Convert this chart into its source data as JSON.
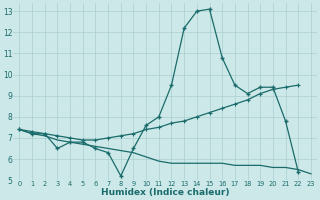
{
  "xlabel": "Humidex (Indice chaleur)",
  "bg_color": "#cde8e8",
  "line_color": "#1a6b6b",
  "grid_color": "#aacfcf",
  "xlim": [
    -0.5,
    23.5
  ],
  "ylim": [
    5,
    13.4
  ],
  "xticks": [
    0,
    1,
    2,
    3,
    4,
    5,
    6,
    7,
    8,
    9,
    10,
    11,
    12,
    13,
    14,
    15,
    16,
    17,
    18,
    19,
    20,
    21,
    22,
    23
  ],
  "yticks": [
    5,
    6,
    7,
    8,
    9,
    10,
    11,
    12,
    13
  ],
  "line1_x": [
    0,
    1,
    2,
    3,
    4,
    5,
    6,
    7,
    8,
    9,
    10,
    11,
    12,
    13,
    14,
    15,
    16,
    17,
    18,
    19,
    20,
    21,
    22
  ],
  "line1_y": [
    7.4,
    7.2,
    7.2,
    6.5,
    6.8,
    6.8,
    6.5,
    6.3,
    5.2,
    6.5,
    7.6,
    8.0,
    9.5,
    12.2,
    13.0,
    13.1,
    10.8,
    9.5,
    9.1,
    9.4,
    9.4,
    7.8,
    5.4
  ],
  "line2_x": [
    0,
    1,
    2,
    3,
    4,
    5,
    6,
    7,
    8,
    9,
    10,
    11,
    12,
    13,
    14,
    15,
    16,
    17,
    18,
    19,
    20,
    21,
    22
  ],
  "line2_y": [
    7.4,
    7.3,
    7.2,
    7.1,
    7.0,
    6.9,
    6.9,
    7.0,
    7.1,
    7.2,
    7.4,
    7.5,
    7.7,
    7.8,
    8.0,
    8.2,
    8.4,
    8.6,
    8.8,
    9.1,
    9.3,
    9.4,
    9.5
  ],
  "line3_x": [
    0,
    1,
    2,
    3,
    4,
    5,
    6,
    7,
    8,
    9,
    10,
    11,
    12,
    13,
    14,
    15,
    16,
    17,
    18,
    19,
    20,
    21,
    22,
    23
  ],
  "line3_y": [
    7.4,
    7.2,
    7.1,
    6.9,
    6.8,
    6.7,
    6.6,
    6.5,
    6.4,
    6.3,
    6.1,
    5.9,
    5.8,
    5.8,
    5.8,
    5.8,
    5.8,
    5.7,
    5.7,
    5.7,
    5.6,
    5.6,
    5.5,
    5.3
  ]
}
